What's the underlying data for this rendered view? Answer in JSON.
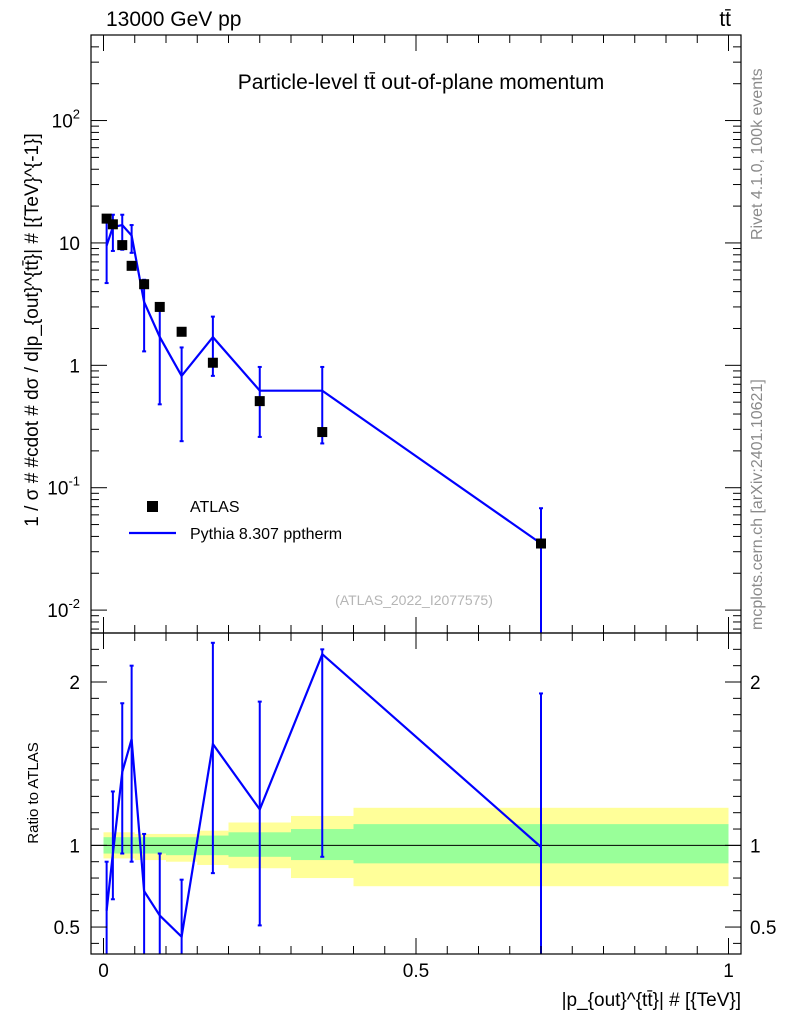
{
  "header": {
    "left": "13000 GeV pp",
    "right": "tt̄"
  },
  "side_labels": {
    "rivet": "Rivet 4.1.0,  100k events",
    "mcplots": "mcplots.cern.ch [arXiv:2401.10621]"
  },
  "chart_data": {
    "type": "scatter",
    "title": "Particle-level tt̄ out-of-plane momentum",
    "analysis_label": "(ATLAS_2022_I2077575)",
    "xlabel": "|p_{out}^{tt̄}| # [{TeV}]",
    "ylabel": "1 / σ # #cdot # dσ / d|p_{out}^{tt̄}| # [{TeV}^{-1}]",
    "ratio_ylabel": "Ratio to ATLAS",
    "xlim": [
      -0.02,
      1.02
    ],
    "ylim": [
      0.0065,
      500
    ],
    "yscale": "log",
    "ratio_ylim": [
      0.335,
      2.3
    ],
    "x_ticks": [
      0,
      0.5,
      1
    ],
    "x_tick_labels": [
      "0",
      "0.5",
      "1"
    ],
    "y_tick_labels": [
      "10^{-2}",
      "10^{-1}",
      "1",
      "10",
      "10^{2}"
    ],
    "ratio_y_ticks": [
      0.5,
      1,
      2
    ],
    "ratio_y_tick_labels": [
      "0.5",
      "1",
      "2"
    ],
    "legend": {
      "position": "bottom-left",
      "entries": [
        "ATLAS",
        "Pythia 8.307 pptherm"
      ]
    },
    "data_series": {
      "name": "ATLAS",
      "x": [
        0.005,
        0.015,
        0.03,
        0.045,
        0.065,
        0.09,
        0.125,
        0.175,
        0.25,
        0.35,
        0.7
      ],
      "y": [
        15.8,
        14.2,
        9.6,
        6.5,
        4.6,
        3.0,
        1.88,
        1.05,
        0.51,
        0.285,
        0.035
      ],
      "bins": [
        [
          0,
          0.01
        ],
        [
          0.01,
          0.02
        ],
        [
          0.02,
          0.04
        ],
        [
          0.04,
          0.05
        ],
        [
          0.05,
          0.08
        ],
        [
          0.08,
          0.1
        ],
        [
          0.1,
          0.15
        ],
        [
          0.15,
          0.2
        ],
        [
          0.2,
          0.3
        ],
        [
          0.3,
          0.4
        ],
        [
          0.4,
          1.0
        ]
      ]
    },
    "mc_series": {
      "name": "Pythia 8.307 pptherm",
      "color": "#0000ff",
      "x": [
        0.005,
        0.015,
        0.03,
        0.045,
        0.065,
        0.09,
        0.125,
        0.175,
        0.25,
        0.35,
        0.7
      ],
      "y": [
        9.5,
        13.5,
        14.0,
        11.5,
        3.3,
        1.7,
        0.82,
        1.7,
        0.62,
        0.62,
        0.035
      ],
      "err_low": [
        4.7,
        8.6,
        8.8,
        8.3,
        1.3,
        0.48,
        0.24,
        0.82,
        0.26,
        0.23,
        0.0001
      ],
      "err_high": [
        15.5,
        17.0,
        17.0,
        14.0,
        5.0,
        2.8,
        1.4,
        2.5,
        0.97,
        0.97,
        0.068
      ]
    },
    "ratio": {
      "x": [
        0.005,
        0.015,
        0.03,
        0.045,
        0.065,
        0.09,
        0.125,
        0.175,
        0.25,
        0.35,
        0.7
      ],
      "y": [
        0.6,
        0.95,
        1.45,
        1.65,
        0.72,
        0.57,
        0.44,
        1.62,
        1.22,
        2.17,
        0.99
      ],
      "err_low": [
        0.3,
        0.67,
        0.95,
        0.9,
        0.28,
        0.33,
        0.3,
        0.83,
        0.51,
        0.93,
        0.3
      ],
      "err_high": [
        0.9,
        1.33,
        1.87,
        2.1,
        1.07,
        0.95,
        0.79,
        2.24,
        1.88,
        2.2,
        1.93
      ],
      "band_green": [
        {
          "x0": 0,
          "x1": 0.05,
          "lo": 0.95,
          "hi": 1.05
        },
        {
          "x0": 0.05,
          "x1": 0.1,
          "lo": 0.95,
          "hi": 1.05
        },
        {
          "x0": 0.1,
          "x1": 0.15,
          "lo": 0.94,
          "hi": 1.05
        },
        {
          "x0": 0.15,
          "x1": 0.2,
          "lo": 0.94,
          "hi": 1.06
        },
        {
          "x0": 0.2,
          "x1": 0.3,
          "lo": 0.93,
          "hi": 1.08
        },
        {
          "x0": 0.3,
          "x1": 0.4,
          "lo": 0.91,
          "hi": 1.1
        },
        {
          "x0": 0.4,
          "x1": 1.0,
          "lo": 0.89,
          "hi": 1.13
        }
      ],
      "band_yellow": [
        {
          "x0": 0,
          "x1": 0.05,
          "lo": 0.92,
          "hi": 1.08
        },
        {
          "x0": 0.05,
          "x1": 0.1,
          "lo": 0.91,
          "hi": 1.07
        },
        {
          "x0": 0.1,
          "x1": 0.15,
          "lo": 0.9,
          "hi": 1.07
        },
        {
          "x0": 0.15,
          "x1": 0.2,
          "lo": 0.88,
          "hi": 1.09
        },
        {
          "x0": 0.2,
          "x1": 0.3,
          "lo": 0.86,
          "hi": 1.14
        },
        {
          "x0": 0.3,
          "x1": 0.4,
          "lo": 0.8,
          "hi": 1.18
        },
        {
          "x0": 0.4,
          "x1": 1.0,
          "lo": 0.75,
          "hi": 1.23
        }
      ]
    }
  }
}
